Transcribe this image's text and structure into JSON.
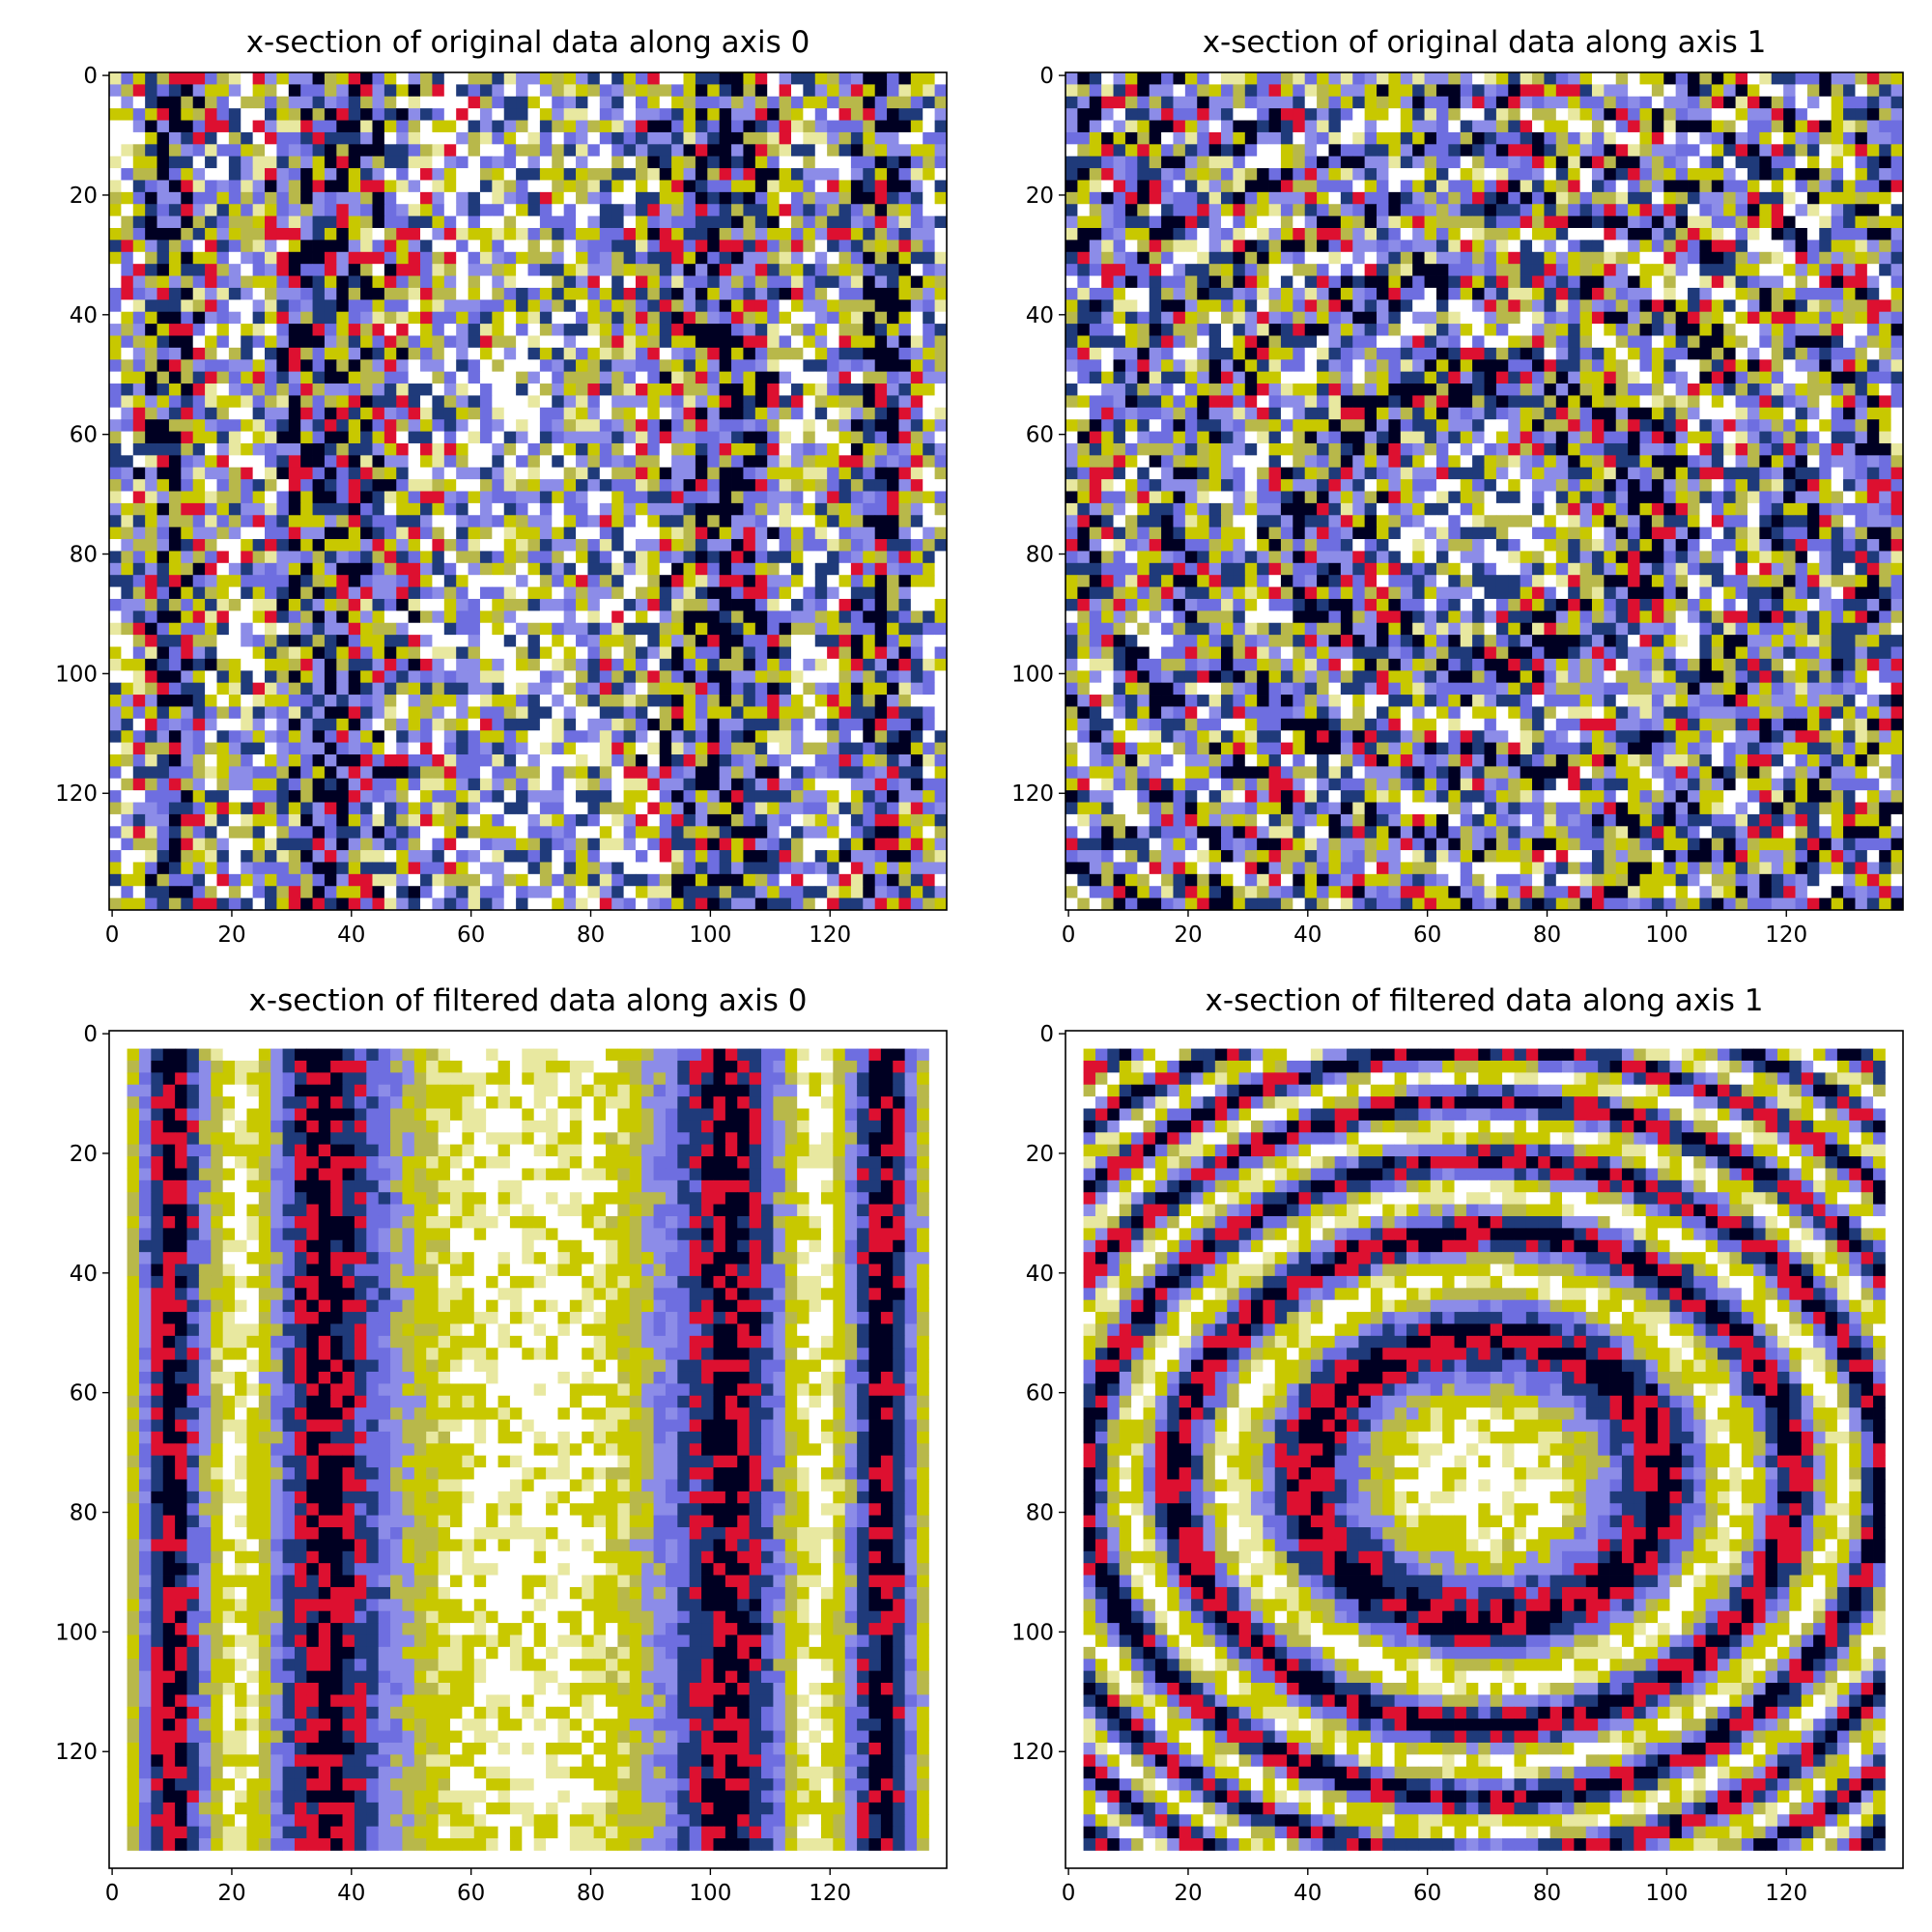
{
  "chart_data": [
    {
      "type": "heatmap",
      "title": "x-section of original data along axis 0",
      "pattern": "vertical-stripes",
      "noise": "high",
      "xlim": [
        -0.5,
        139.5
      ],
      "ylim": [
        139.5,
        -0.5
      ],
      "x_ticks": [
        0,
        20,
        40,
        60,
        80,
        100,
        120
      ],
      "y_ticks": [
        0,
        20,
        40,
        60,
        80,
        100,
        120
      ],
      "x_tick_labels": [
        "0",
        "20",
        "40",
        "60",
        "80",
        "100",
        "120"
      ],
      "y_tick_labels": [
        "0",
        "20",
        "40",
        "60",
        "80",
        "100",
        "120"
      ],
      "data_extent": [
        0,
        139,
        0,
        139
      ],
      "colors": [
        "#000022",
        "#1f3a7a",
        "#6e6ee0",
        "#8c8ce8",
        "#b8b84a",
        "#c8c800",
        "#e8e8a0",
        "#ffffff",
        "#dd1030"
      ]
    },
    {
      "type": "heatmap",
      "title": "x-section of original data along axis 1",
      "pattern": "concentric-ellipses",
      "center": [
        70,
        75
      ],
      "noise": "high",
      "xlim": [
        -0.5,
        139.5
      ],
      "ylim": [
        139.5,
        -0.5
      ],
      "x_ticks": [
        0,
        20,
        40,
        60,
        80,
        100,
        120
      ],
      "y_ticks": [
        0,
        20,
        40,
        60,
        80,
        100,
        120
      ],
      "x_tick_labels": [
        "0",
        "20",
        "40",
        "60",
        "80",
        "100",
        "120"
      ],
      "y_tick_labels": [
        "0",
        "20",
        "40",
        "60",
        "80",
        "100",
        "120"
      ],
      "data_extent": [
        0,
        139,
        0,
        139
      ],
      "colors": [
        "#000022",
        "#1f3a7a",
        "#6e6ee0",
        "#8c8ce8",
        "#b8b84a",
        "#c8c800",
        "#e8e8a0",
        "#ffffff",
        "#dd1030"
      ]
    },
    {
      "type": "heatmap",
      "title": "x-section of filtered data along axis 0",
      "pattern": "vertical-stripes",
      "noise": "low",
      "xlim": [
        -0.5,
        139.5
      ],
      "ylim": [
        139.5,
        -0.5
      ],
      "x_ticks": [
        0,
        20,
        40,
        60,
        80,
        100,
        120
      ],
      "y_ticks": [
        0,
        20,
        40,
        60,
        80,
        100,
        120
      ],
      "x_tick_labels": [
        "0",
        "20",
        "40",
        "60",
        "80",
        "100",
        "120"
      ],
      "y_tick_labels": [
        "0",
        "20",
        "40",
        "60",
        "80",
        "100",
        "120"
      ],
      "data_extent": [
        3,
        136,
        3,
        136
      ],
      "colors": [
        "#000022",
        "#1f3a7a",
        "#6e6ee0",
        "#8c8ce8",
        "#b8b84a",
        "#c8c800",
        "#e8e8a0",
        "#ffffff",
        "#dd1030"
      ]
    },
    {
      "type": "heatmap",
      "title": "x-section of filtered data along axis 1",
      "pattern": "concentric-ellipses",
      "center": [
        70,
        75
      ],
      "noise": "low",
      "xlim": [
        -0.5,
        139.5
      ],
      "ylim": [
        139.5,
        -0.5
      ],
      "x_ticks": [
        0,
        20,
        40,
        60,
        80,
        100,
        120
      ],
      "y_ticks": [
        0,
        20,
        40,
        60,
        80,
        100,
        120
      ],
      "x_tick_labels": [
        "0",
        "20",
        "40",
        "60",
        "80",
        "100",
        "120"
      ],
      "y_tick_labels": [
        "0",
        "20",
        "40",
        "60",
        "80",
        "100",
        "120"
      ],
      "data_extent": [
        3,
        136,
        3,
        136
      ],
      "colors": [
        "#000022",
        "#1f3a7a",
        "#6e6ee0",
        "#8c8ce8",
        "#b8b84a",
        "#c8c800",
        "#e8e8a0",
        "#ffffff",
        "#dd1030"
      ]
    }
  ]
}
